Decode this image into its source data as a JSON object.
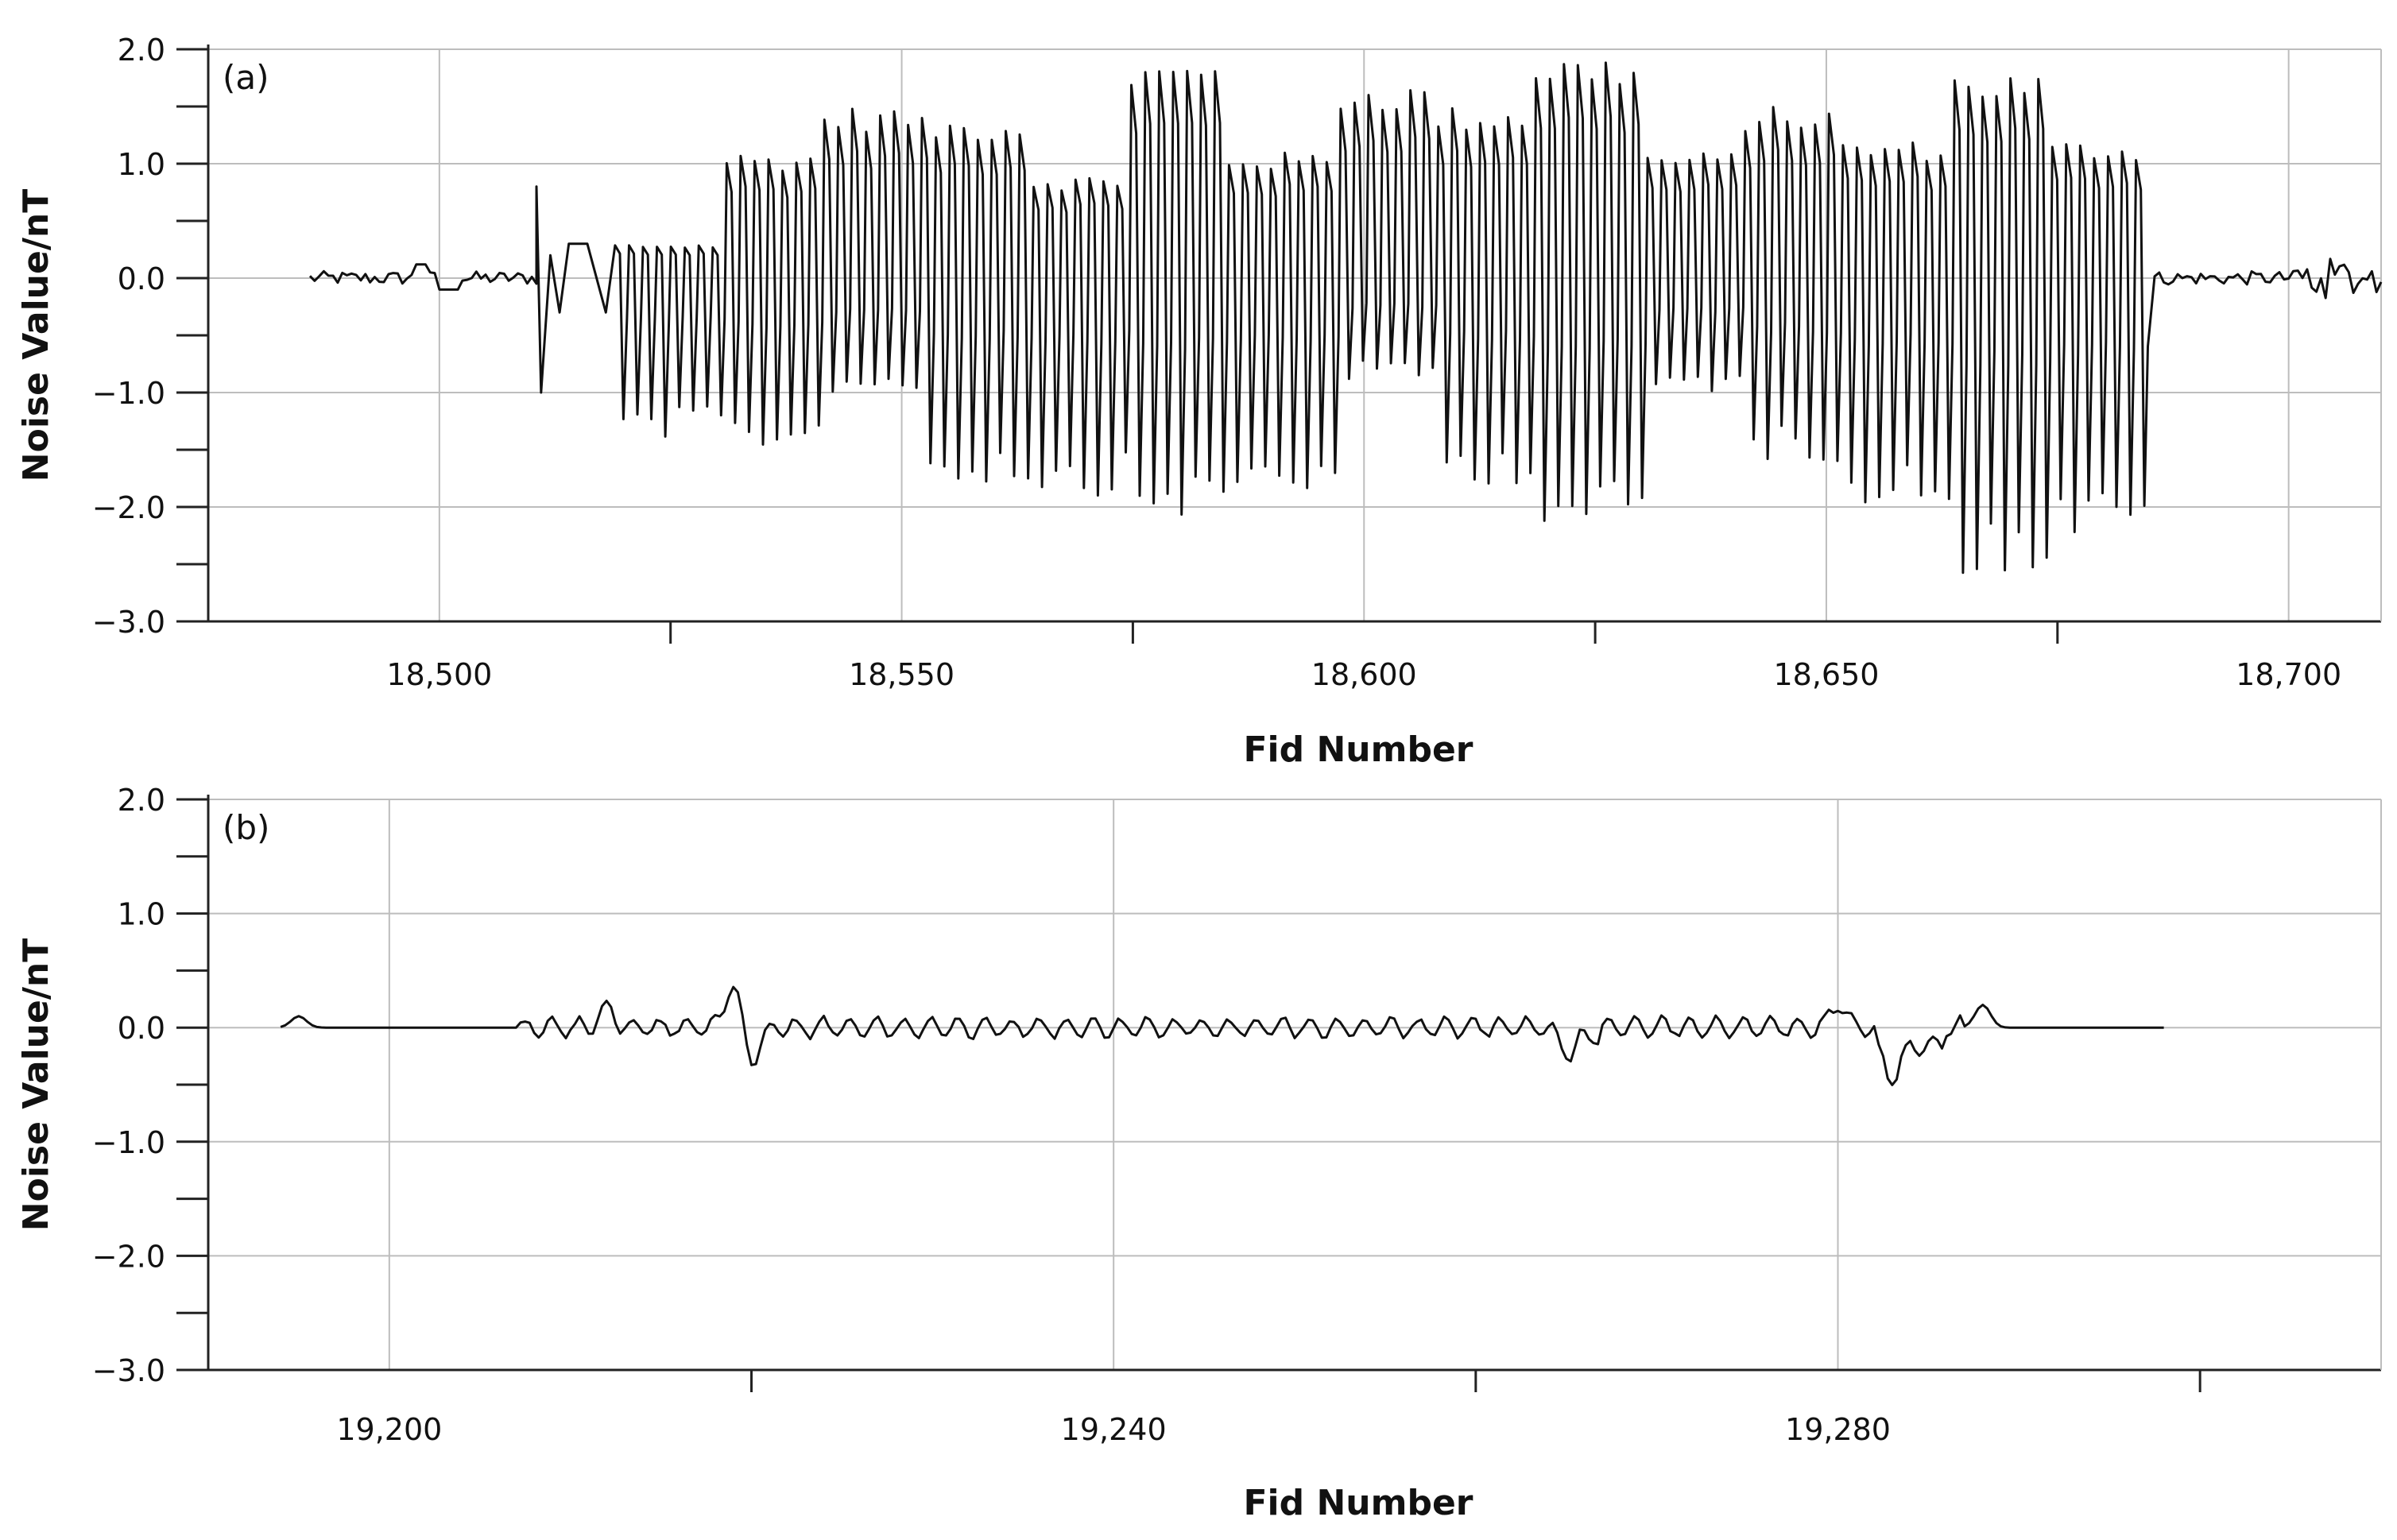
{
  "chart_data": [
    {
      "type": "line",
      "panel_label": "(a)",
      "xlabel": "Fid Number",
      "ylabel": "Noise Value/nT",
      "xlim": [
        18475,
        18710
      ],
      "ylim": [
        -3.0,
        2.0
      ],
      "x_ticks": [
        18500,
        18550,
        18600,
        18650,
        18700
      ],
      "x_tick_labels": [
        "18,500",
        "18,550",
        "18,600",
        "18,650",
        "18,700"
      ],
      "x_minor_ticks": [
        18525,
        18575,
        18625,
        18675
      ],
      "y_ticks": [
        2.0,
        1.0,
        0.0,
        -1.0,
        -2.0,
        -3.0
      ],
      "y_tick_labels": [
        "2.0",
        "1.0",
        "0.0",
        "−1.0",
        "−2.0",
        "−3.0"
      ],
      "grid": true,
      "color": "#111111",
      "signal_range": [
        18486,
        18710
      ],
      "quiet_segments": [
        [
          18486,
          18510
        ],
        [
          18686,
          18710
        ]
      ],
      "burst_segment": [
        18511,
        18685
      ],
      "burst_peaks": {
        "max": [
          0.3,
          1.1,
          1.5,
          1.4,
          0.9,
          1.9,
          1.1,
          1.7,
          1.5,
          1.95,
          1.1,
          1.5,
          1.2,
          1.8,
          1.2
        ],
        "min": [
          -1.4,
          -1.5,
          -1.0,
          -1.8,
          -1.9,
          -2.1,
          -1.9,
          -0.9,
          -1.8,
          -2.2,
          -1.0,
          -1.6,
          -2.0,
          -2.6,
          -2.3
        ]
      },
      "pulse_count": 110
    },
    {
      "type": "line",
      "panel_label": "(b)",
      "xlabel": "Fid Number",
      "ylabel": "Noise Value/nT",
      "xlim": [
        19190,
        19310
      ],
      "ylim": [
        -3.0,
        2.0
      ],
      "x_ticks": [
        19200,
        19240,
        19280
      ],
      "x_tick_labels": [
        "19,200",
        "19,240",
        "19,280"
      ],
      "x_minor_ticks": [
        19220,
        19260,
        19300
      ],
      "y_ticks": [
        2.0,
        1.0,
        0.0,
        -1.0,
        -2.0,
        -3.0
      ],
      "y_tick_labels": [
        "2.0",
        "1.0",
        "0.0",
        "−1.0",
        "−2.0",
        "−3.0"
      ],
      "grid": true,
      "color": "#111111",
      "signal_range": [
        19194,
        19298
      ],
      "features": [
        {
          "x": 19195,
          "y": 0.1
        },
        {
          "x": 19212,
          "y": 0.18
        },
        {
          "x": 19219,
          "y": 0.4
        },
        {
          "x": 19220,
          "y": -0.3
        },
        {
          "x": 19265,
          "y": -0.2
        },
        {
          "x": 19280,
          "y": 0.2
        },
        {
          "x": 19283,
          "y": -0.3
        },
        {
          "x": 19288,
          "y": 0.2
        }
      ],
      "wiggle_amplitude": 0.1
    }
  ]
}
